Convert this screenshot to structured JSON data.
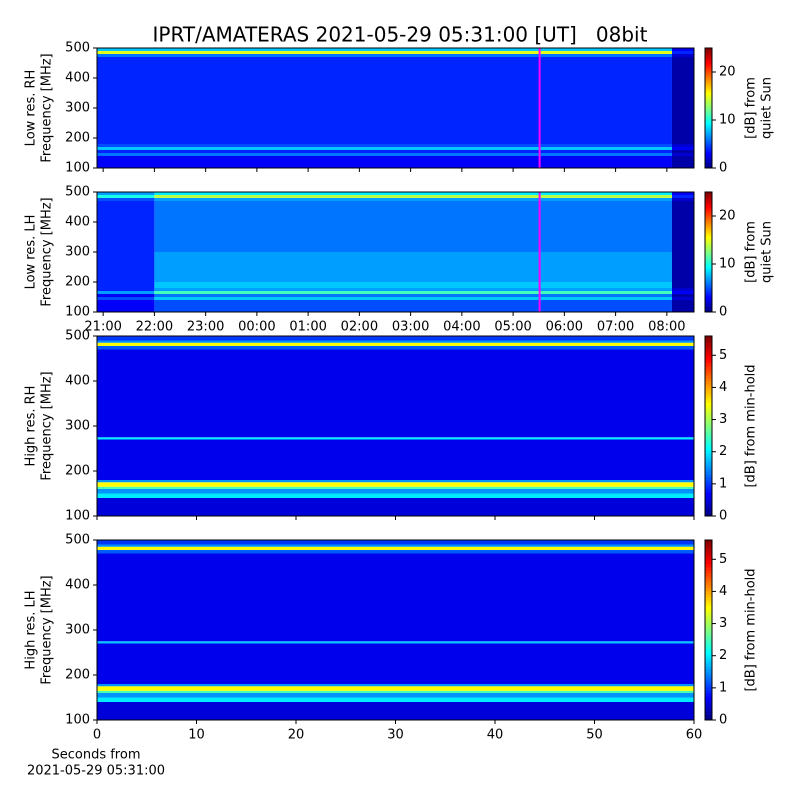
{
  "title": "IPRT/AMATERAS 2021-05-29 05:31:00 [UT]   08bit",
  "chart_data": [
    {
      "type": "heatmap",
      "ylabel": [
        "Low res. RH",
        "Frequency [MHz]"
      ],
      "colorbar_label": [
        "[dB] from",
        "quiet Sun"
      ],
      "cmap": "jet",
      "xlim": [
        20.88,
        32.53
      ],
      "xticks": [
        {
          "value": 21,
          "label": "21:00"
        },
        {
          "value": 22,
          "label": "22:00"
        },
        {
          "value": 23,
          "label": "23:00"
        },
        {
          "value": 24,
          "label": "00:00"
        },
        {
          "value": 25,
          "label": "01:00"
        },
        {
          "value": 26,
          "label": "02:00"
        },
        {
          "value": 27,
          "label": "03:00"
        },
        {
          "value": 28,
          "label": "04:00"
        },
        {
          "value": 29,
          "label": "05:00"
        },
        {
          "value": 30,
          "label": "06:00"
        },
        {
          "value": 31,
          "label": "07:00"
        },
        {
          "value": 32,
          "label": "08:00"
        }
      ],
      "show_xtick_labels": false,
      "ylim": [
        100,
        500
      ],
      "yticks": [
        100,
        200,
        300,
        400,
        500
      ],
      "zlim": [
        0,
        25
      ],
      "zticks": [
        0,
        10,
        20
      ],
      "x_bins": [
        20.88,
        32.1,
        32.53
      ],
      "y_bins": [
        100,
        140,
        150,
        160,
        170,
        180,
        200,
        300,
        400,
        470,
        480,
        490,
        500
      ],
      "z": [
        [
          3,
          1
        ],
        [
          6,
          2
        ],
        [
          4,
          1
        ],
        [
          8,
          3
        ],
        [
          5,
          2
        ],
        [
          4,
          1
        ],
        [
          4,
          1
        ],
        [
          4,
          1
        ],
        [
          4,
          1
        ],
        [
          6,
          2
        ],
        [
          15,
          4
        ],
        [
          8,
          3
        ]
      ],
      "markers": [
        {
          "x": 29.517,
          "color": "#ff00ff"
        }
      ]
    },
    {
      "type": "heatmap",
      "ylabel": [
        "Low res. LH",
        "Frequency [MHz]"
      ],
      "colorbar_label": [
        "[dB] from",
        "quiet Sun"
      ],
      "cmap": "jet",
      "xlim": [
        20.88,
        32.53
      ],
      "xticks": [
        {
          "value": 21,
          "label": "21:00"
        },
        {
          "value": 22,
          "label": "22:00"
        },
        {
          "value": 23,
          "label": "23:00"
        },
        {
          "value": 24,
          "label": "00:00"
        },
        {
          "value": 25,
          "label": "01:00"
        },
        {
          "value": 26,
          "label": "02:00"
        },
        {
          "value": 27,
          "label": "03:00"
        },
        {
          "value": 28,
          "label": "04:00"
        },
        {
          "value": 29,
          "label": "05:00"
        },
        {
          "value": 30,
          "label": "06:00"
        },
        {
          "value": 31,
          "label": "07:00"
        },
        {
          "value": 32,
          "label": "08:00"
        }
      ],
      "show_xtick_labels": true,
      "ylim": [
        100,
        500
      ],
      "yticks": [
        100,
        200,
        300,
        400,
        500
      ],
      "zlim": [
        0,
        25
      ],
      "zticks": [
        0,
        10,
        20
      ],
      "x_bins": [
        20.88,
        22.0,
        32.1,
        32.53
      ],
      "y_bins": [
        100,
        140,
        150,
        160,
        170,
        180,
        200,
        300,
        400,
        470,
        480,
        490,
        500
      ],
      "z": [
        [
          3,
          5,
          1
        ],
        [
          5,
          8,
          2
        ],
        [
          3,
          6,
          1
        ],
        [
          7,
          11,
          3
        ],
        [
          4,
          7,
          2
        ],
        [
          4,
          8,
          1
        ],
        [
          4,
          7,
          1
        ],
        [
          4,
          6,
          1
        ],
        [
          4,
          6,
          1
        ],
        [
          5,
          7,
          2
        ],
        [
          10,
          14,
          4
        ],
        [
          7,
          9,
          3
        ]
      ],
      "markers": [
        {
          "x": 29.517,
          "color": "#ff00ff"
        }
      ]
    },
    {
      "type": "heatmap",
      "ylabel": [
        "High res. RH",
        "Frequency [MHz]"
      ],
      "colorbar_label": [
        "[dB] from min-hold"
      ],
      "cmap": "jet",
      "xlim": [
        0,
        60
      ],
      "xticks": [
        0,
        10,
        20,
        30,
        40,
        50,
        60
      ],
      "show_xtick_labels": false,
      "ylim": [
        100,
        500
      ],
      "yticks": [
        100,
        200,
        300,
        400,
        500
      ],
      "zlim": [
        0,
        5.6
      ],
      "zticks": [
        0,
        1,
        2,
        3,
        4,
        5
      ],
      "x_bins": [
        0,
        60
      ],
      "y_bins": [
        100,
        140,
        150,
        160,
        165,
        175,
        180,
        270,
        275,
        470,
        478,
        485,
        490,
        500
      ],
      "z": [
        [
          0.5
        ],
        [
          2
        ],
        [
          1.5
        ],
        [
          2.5
        ],
        [
          3.5
        ],
        [
          1.5
        ],
        [
          0.6
        ],
        [
          2
        ],
        [
          0.6
        ],
        [
          1.2
        ],
        [
          3.5
        ],
        [
          1.5
        ],
        [
          1
        ]
      ]
    },
    {
      "type": "heatmap",
      "ylabel": [
        "High res. LH",
        "Frequency [MHz]"
      ],
      "colorbar_label": [
        "[dB] from min-hold"
      ],
      "cmap": "jet",
      "xlim": [
        0,
        60
      ],
      "xticks": [
        0,
        10,
        20,
        30,
        40,
        50,
        60
      ],
      "show_xtick_labels": true,
      "xlabel": [
        "Seconds from",
        "2021-05-29 05:31:00"
      ],
      "ylim": [
        100,
        500
      ],
      "yticks": [
        100,
        200,
        300,
        400,
        500
      ],
      "zlim": [
        0,
        5.6
      ],
      "zticks": [
        0,
        1,
        2,
        3,
        4,
        5
      ],
      "x_bins": [
        0,
        60
      ],
      "y_bins": [
        100,
        140,
        150,
        160,
        165,
        175,
        180,
        270,
        275,
        470,
        478,
        485,
        490,
        500
      ],
      "z": [
        [
          0.5
        ],
        [
          2
        ],
        [
          1.5
        ],
        [
          2.5
        ],
        [
          3.5
        ],
        [
          1.5
        ],
        [
          0.6
        ],
        [
          1.8
        ],
        [
          0.6
        ],
        [
          1.2
        ],
        [
          3.5
        ],
        [
          1.5
        ],
        [
          1
        ]
      ]
    }
  ]
}
